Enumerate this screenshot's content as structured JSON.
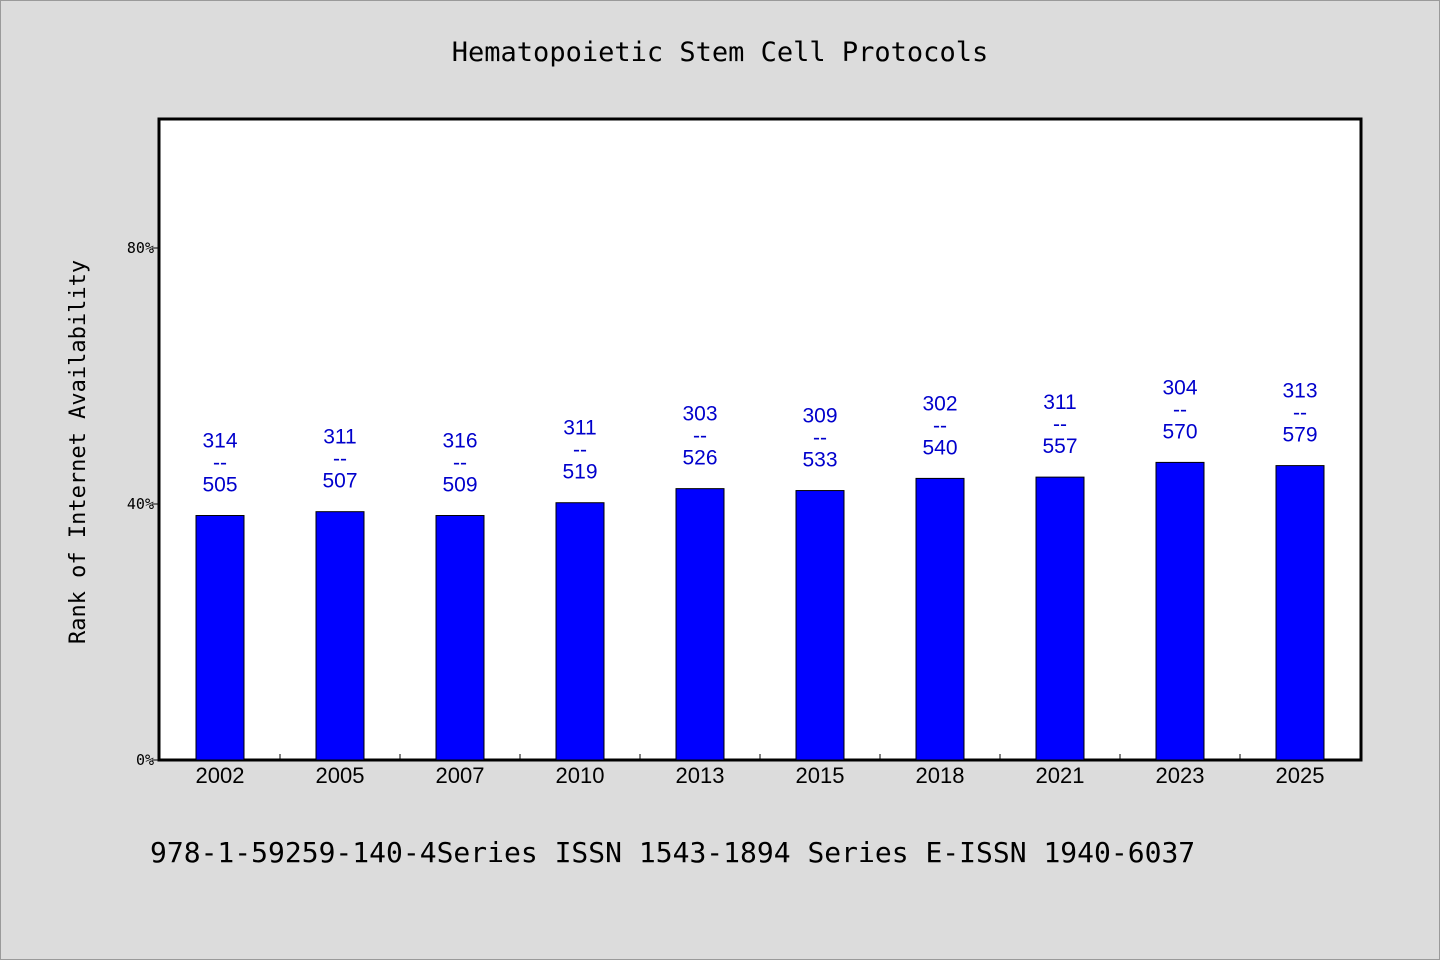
{
  "chart_data": {
    "type": "bar",
    "title": "Hematopoietic Stem Cell Protocols",
    "ylabel": "Rank of Internet Availability",
    "xlabel": "",
    "ylim": [
      0,
      100
    ],
    "yticks": [
      {
        "value": 0,
        "label": "0%"
      },
      {
        "value": 40,
        "label": "40%"
      },
      {
        "value": 80,
        "label": "80%"
      }
    ],
    "categories": [
      "2002",
      "2005",
      "2007",
      "2010",
      "2013",
      "2015",
      "2018",
      "2021",
      "2023",
      "2025"
    ],
    "values": [
      38.2,
      38.8,
      38.2,
      40.2,
      42.4,
      42.1,
      44.0,
      44.2,
      46.5,
      46.0
    ],
    "data_labels": [
      [
        "314",
        "--",
        "505"
      ],
      [
        "311",
        "--",
        "507"
      ],
      [
        "316",
        "--",
        "509"
      ],
      [
        "311",
        "--",
        "519"
      ],
      [
        "303",
        "--",
        "526"
      ],
      [
        "309",
        "--",
        "533"
      ],
      [
        "302",
        "--",
        "540"
      ],
      [
        "311",
        "--",
        "557"
      ],
      [
        "304",
        "--",
        "570"
      ],
      [
        "313",
        "--",
        "579"
      ]
    ],
    "bar_color": "#0000ff",
    "label_color": "#0000cc",
    "grid": false,
    "legend": "none"
  },
  "footnote": "978-1-59259-140-4Series ISSN 1543-1894 Series E-ISSN 1940-6037",
  "colors": {
    "background": "#dcdcdc",
    "plot_background": "#ffffff",
    "bar": "#0000ff"
  }
}
